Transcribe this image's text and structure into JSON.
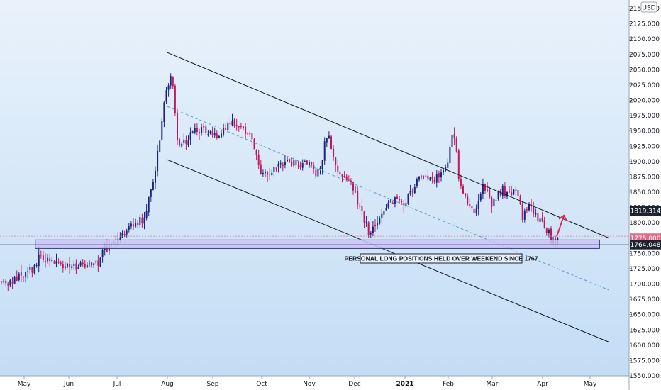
{
  "currency": "USD",
  "colors": {
    "background_top": "#e9f2fb",
    "background_bottom": "#c2dcf5",
    "up": "#1a237e",
    "down": "#c2185b",
    "channel": "#131722",
    "midline": "#5b9bd5",
    "zone_fill": "#c9c4f7",
    "zone_border": "#3a3a8c",
    "arrow": "#d32f5f",
    "current_price": "#e06b8a",
    "label_bg": "#1e2330",
    "label_pink_bg": "#e06b8a"
  },
  "price_labels": {
    "level_1": "1819.314",
    "level_2": "1764.048",
    "current": "1775.000"
  },
  "annotation": "PERSONAL LONG POSITIONS HELD OVER WEEKEND SINCE 1767",
  "chart_data": {
    "type": "candlestick",
    "title": "",
    "y_ticks": [
      "1550.000",
      "1575.000",
      "1600.000",
      "1625.000",
      "1650.000",
      "1675.000",
      "1700.000",
      "1725.000",
      "1750.000",
      "1775.000",
      "1800.000",
      "1825.000",
      "1850.000",
      "1875.000",
      "1900.000",
      "1925.000",
      "1950.000",
      "1975.000",
      "2000.000",
      "2025.000",
      "2050.000",
      "2075.000",
      "2100.000",
      "2125.000",
      "2150.000"
    ],
    "x_ticks": [
      "May",
      "Jun",
      "Jul",
      "Aug",
      "Sep",
      "Oct",
      "Nov",
      "Dec",
      "2021",
      "Feb",
      "Mar",
      "Apr",
      "May"
    ],
    "ylim": [
      1545,
      2160
    ],
    "month_index": {
      "May": 0,
      "Jun": 1,
      "Jul": 2,
      "Aug": 3,
      "Sep": 4,
      "Oct": 5,
      "Nov": 6,
      "Dec": 7,
      "2021": 8,
      "Feb": 9,
      "Mar": 10,
      "Apr": 11,
      "May2": 12
    },
    "trend_points": [
      [
        -0.45,
        1705
      ],
      [
        0.0,
        1710
      ],
      [
        0.35,
        1740
      ],
      [
        0.55,
        1745
      ],
      [
        0.8,
        1730
      ],
      [
        1.0,
        1735
      ],
      [
        1.3,
        1725
      ],
      [
        1.55,
        1730
      ],
      [
        1.8,
        1760
      ],
      [
        2.0,
        1775
      ],
      [
        2.3,
        1795
      ],
      [
        2.55,
        1810
      ],
      [
        2.75,
        1880
      ],
      [
        2.9,
        1970
      ],
      [
        3.05,
        2045
      ],
      [
        3.12,
        2020
      ],
      [
        3.2,
        1940
      ],
      [
        3.3,
        1925
      ],
      [
        3.6,
        1955
      ],
      [
        3.9,
        1950
      ],
      [
        4.1,
        1940
      ],
      [
        4.4,
        1965
      ],
      [
        4.7,
        1955
      ],
      [
        4.9,
        1905
      ],
      [
        5.0,
        1880
      ],
      [
        5.2,
        1880
      ],
      [
        5.5,
        1905
      ],
      [
        5.8,
        1895
      ],
      [
        6.0,
        1900
      ],
      [
        6.15,
        1880
      ],
      [
        6.3,
        1900
      ],
      [
        6.35,
        1940
      ],
      [
        6.45,
        1935
      ],
      [
        6.6,
        1890
      ],
      [
        6.8,
        1870
      ],
      [
        7.0,
        1850
      ],
      [
        7.15,
        1810
      ],
      [
        7.3,
        1780
      ],
      [
        7.5,
        1810
      ],
      [
        7.75,
        1840
      ],
      [
        8.0,
        1835
      ],
      [
        8.25,
        1865
      ],
      [
        8.45,
        1880
      ],
      [
        8.65,
        1875
      ],
      [
        8.8,
        1880
      ],
      [
        9.0,
        1900
      ],
      [
        9.08,
        1940
      ],
      [
        9.15,
        1950
      ],
      [
        9.25,
        1860
      ],
      [
        9.45,
        1835
      ],
      [
        9.6,
        1820
      ],
      [
        9.8,
        1860
      ],
      [
        10.0,
        1830
      ],
      [
        10.2,
        1855
      ],
      [
        10.35,
        1845
      ],
      [
        10.5,
        1850
      ],
      [
        10.6,
        1810
      ],
      [
        10.75,
        1830
      ],
      [
        10.85,
        1815
      ],
      [
        11.0,
        1800
      ],
      [
        11.1,
        1785
      ],
      [
        11.25,
        1768
      ],
      [
        11.33,
        1778
      ]
    ],
    "channel_upper": [
      [
        3.0,
        2078
      ],
      [
        12.4,
        1775
      ]
    ],
    "channel_lower": [
      [
        3.0,
        1903
      ],
      [
        12.4,
        1605
      ]
    ],
    "channel_mid": [
      [
        3.0,
        1990
      ],
      [
        12.4,
        1690
      ]
    ],
    "support_zone": [
      1758,
      1772
    ],
    "support_zone_x": [
      0.25,
      12.2
    ],
    "resistance_line_x": [
      8.1,
      13.7
    ],
    "arrow_from": [
      11.3,
      1778
    ],
    "arrow_to": [
      11.45,
      1812
    ],
    "grid": false,
    "legend": "none"
  }
}
